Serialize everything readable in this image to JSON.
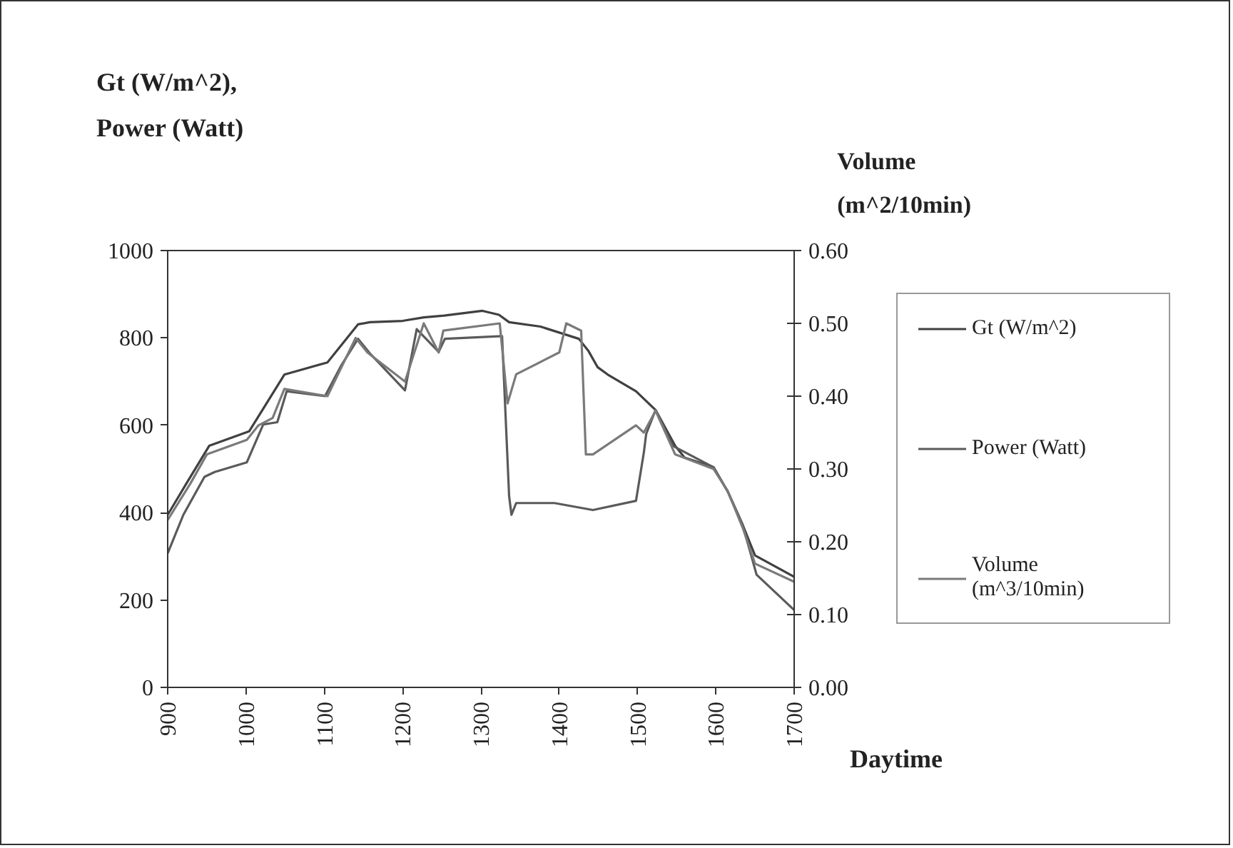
{
  "chart_data": {
    "type": "line",
    "ylabel": "Gt (W/m^2),\nPower (Watt)",
    "y2label": "Volume\n(m^2/10min)",
    "xlabel": "Daytime",
    "xlim": [
      900,
      1700
    ],
    "xticks": [
      900,
      1000,
      1100,
      1200,
      1300,
      1400,
      1500,
      1600,
      1700
    ],
    "ylim": [
      0,
      1000
    ],
    "yticks": [
      0,
      200,
      400,
      600,
      800,
      1000
    ],
    "y2lim": [
      0,
      0.6
    ],
    "y2ticks": [
      {
        "value": 0,
        "label": "0.00"
      },
      {
        "value": 0.1,
        "label": "0.10"
      },
      {
        "value": 0.2,
        "label": "0.20"
      },
      {
        "value": 0.3,
        "label": "0.30"
      },
      {
        "value": 0.4,
        "label": "0.40"
      },
      {
        "value": 0.5,
        "label": "0.50"
      },
      {
        "value": 0.6,
        "label": "0.60"
      }
    ],
    "legend": "right",
    "line_style": "solid",
    "series": [
      {
        "name": "Gt (W/m^2)",
        "color": "#404040",
        "x": [
          900,
          925,
          953,
          1004,
          1049,
          1104,
          1143,
          1158,
          1200,
          1227,
          1253,
          1302,
          1323,
          1336,
          1376,
          1425,
          1437,
          1449,
          1462,
          1498,
          1523,
          1548,
          1560,
          1597,
          1615,
          1634,
          1650,
          1700
        ],
        "values": [
          395,
          470,
          553,
          586,
          716,
          744,
          831,
          836,
          839,
          847,
          851,
          862,
          853,
          836,
          826,
          798,
          771,
          733,
          716,
          678,
          635,
          553,
          526,
          504,
          449,
          373,
          302,
          253
        ]
      },
      {
        "name": "Power (Watt)",
        "color": "#5a5a5a",
        "x": [
          900,
          920,
          947,
          960,
          1001,
          1022,
          1040,
          1052,
          1101,
          1122,
          1143,
          1158,
          1203,
          1218,
          1246,
          1254,
          1327,
          1336,
          1339,
          1345,
          1394,
          1443,
          1498,
          1508,
          1511,
          1523,
          1545,
          1597,
          1615,
          1634,
          1652,
          1700
        ],
        "values": [
          307,
          395,
          482,
          493,
          515,
          602,
          607,
          678,
          667,
          738,
          798,
          765,
          680,
          820,
          768,
          798,
          804,
          438,
          395,
          422,
          422,
          406,
          427,
          537,
          580,
          635,
          553,
          504,
          449,
          373,
          258,
          177
        ]
      },
      {
        "name": "Volume\n(m^3/10min)",
        "color": "#7a7a7a",
        "axis": "y2",
        "x": [
          900,
          929,
          950,
          1001,
          1016,
          1034,
          1049,
          1104,
          1140,
          1155,
          1203,
          1227,
          1246,
          1252,
          1324,
          1334,
          1345,
          1400,
          1409,
          1428,
          1434,
          1443,
          1498,
          1508,
          1523,
          1548,
          1597,
          1615,
          1634,
          1650,
          1700
        ],
        "values": [
          0.23,
          0.28,
          0.32,
          0.34,
          0.36,
          0.37,
          0.41,
          0.4,
          0.48,
          0.46,
          0.42,
          0.5,
          0.46,
          0.49,
          0.5,
          0.39,
          0.43,
          0.46,
          0.5,
          0.49,
          0.32,
          0.32,
          0.36,
          0.35,
          0.38,
          0.32,
          0.3,
          0.27,
          0.22,
          0.17,
          0.145
        ]
      }
    ]
  }
}
